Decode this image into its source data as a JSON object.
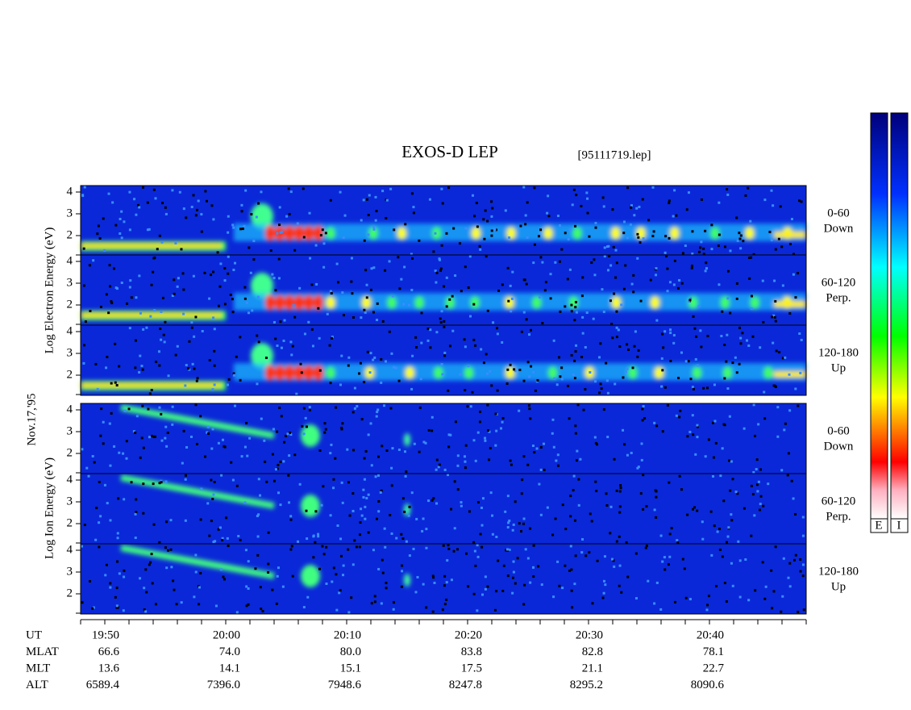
{
  "title": "EXOS-D LEP",
  "file": "[95111719.lep]",
  "date": "Nov.17,'95",
  "axis_labels": {
    "electron": "Log Electron Energy (eV)",
    "ion": "Log Ion Energy (eV)"
  },
  "panels": [
    {
      "label": [
        "0-60",
        "Down"
      ],
      "yticks": [
        "4",
        "3",
        "2"
      ]
    },
    {
      "label": [
        "60-120",
        "Perp."
      ],
      "yticks": [
        "4",
        "3",
        "2"
      ]
    },
    {
      "label": [
        "120-180",
        "Up"
      ],
      "yticks": [
        "4",
        "3",
        "2"
      ]
    },
    {
      "label": [
        "0-60",
        "Down"
      ],
      "yticks": [
        "4",
        "3",
        "2"
      ]
    },
    {
      "label": [
        "60-120",
        "Perp."
      ],
      "yticks": [
        "4",
        "3",
        "2"
      ]
    },
    {
      "label": [
        "120-180",
        "Up"
      ],
      "yticks": [
        "4",
        "3",
        "2"
      ]
    }
  ],
  "colorbar_labels": [
    "E",
    "I"
  ],
  "ephemeris": [
    {
      "name": "UT",
      "values": [
        "19:50",
        "20:00",
        "20:10",
        "20:20",
        "20:30",
        "20:40"
      ]
    },
    {
      "name": "MLAT",
      "values": [
        "66.6",
        "74.0",
        "80.0",
        "83.8",
        "82.8",
        "78.1"
      ]
    },
    {
      "name": "MLT",
      "values": [
        "13.6",
        "14.1",
        "15.1",
        "17.5",
        "21.1",
        "22.7"
      ]
    },
    {
      "name": "ALT",
      "values": [
        "6589.4",
        "7396.0",
        "7948.6",
        "8247.8",
        "8295.2",
        "8090.6"
      ]
    }
  ]
}
